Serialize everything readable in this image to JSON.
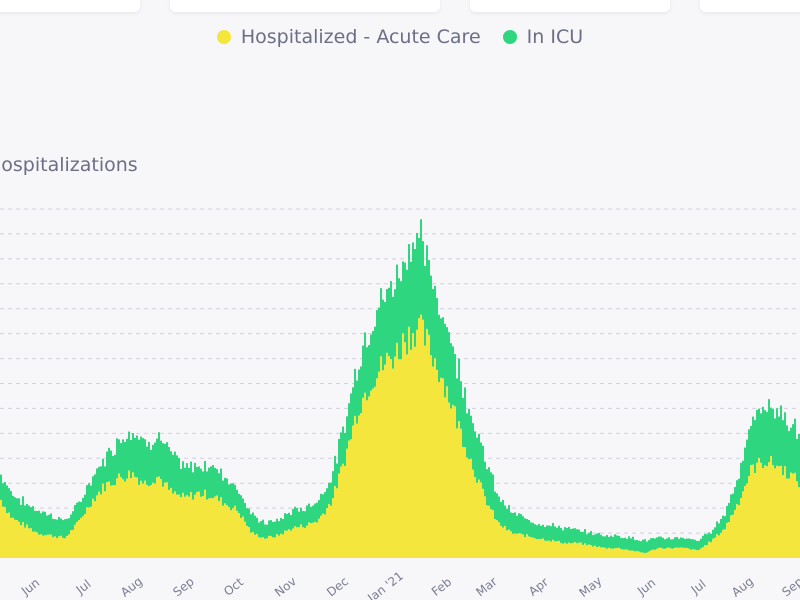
{
  "legend": {
    "acute_label": "Hospitalized - Acute Care",
    "icu_label": "In ICU"
  },
  "colors": {
    "acute": "#f4e63c",
    "icu": "#2ed67f",
    "gridline": "#cfd0e0",
    "axis_text": "#7a7d92"
  },
  "chart_data": {
    "type": "bar",
    "title": "Hospitalizations",
    "stacked": true,
    "grid": true,
    "gridline_style": "dashed",
    "legend_position": "top-center",
    "tick_labels": [
      "Jun",
      "Jul",
      "Aug",
      "Sep",
      "Oct",
      "Nov",
      "Dec",
      "Jan '21",
      "Feb",
      "Mar",
      "Apr",
      "May",
      "Jun",
      "Jul",
      "Aug",
      "Sep"
    ],
    "ylim": [
      0,
      14
    ],
    "series_names": [
      "Hospitalized - Acute Care",
      "In ICU"
    ],
    "acute_profile": [
      [
        0,
        2.4
      ],
      [
        12,
        1.6
      ],
      [
        25,
        1.3
      ],
      [
        38,
        1.0
      ],
      [
        52,
        0.9
      ],
      [
        65,
        0.8
      ],
      [
        78,
        1.4
      ],
      [
        92,
        2.3
      ],
      [
        105,
        2.9
      ],
      [
        118,
        3.2
      ],
      [
        132,
        3.4
      ],
      [
        145,
        3.0
      ],
      [
        158,
        3.3
      ],
      [
        172,
        2.6
      ],
      [
        185,
        2.4
      ],
      [
        198,
        2.6
      ],
      [
        212,
        2.5
      ],
      [
        225,
        2.2
      ],
      [
        238,
        1.9
      ],
      [
        252,
        1.0
      ],
      [
        265,
        0.8
      ],
      [
        278,
        0.9
      ],
      [
        292,
        1.2
      ],
      [
        305,
        1.3
      ],
      [
        318,
        1.5
      ],
      [
        332,
        2.3
      ],
      [
        345,
        4.0
      ],
      [
        358,
        6.0
      ],
      [
        372,
        7.2
      ],
      [
        385,
        7.8
      ],
      [
        398,
        8.3
      ],
      [
        405,
        8.8
      ],
      [
        418,
        9.3
      ],
      [
        425,
        8.8
      ],
      [
        432,
        8.2
      ],
      [
        445,
        7.0
      ],
      [
        458,
        5.4
      ],
      [
        472,
        3.8
      ],
      [
        485,
        2.4
      ],
      [
        498,
        1.4
      ],
      [
        512,
        1.0
      ],
      [
        525,
        0.9
      ],
      [
        538,
        0.8
      ],
      [
        552,
        0.7
      ],
      [
        565,
        0.6
      ],
      [
        578,
        0.6
      ],
      [
        592,
        0.5
      ],
      [
        605,
        0.4
      ],
      [
        618,
        0.4
      ],
      [
        632,
        0.3
      ],
      [
        645,
        0.2
      ],
      [
        658,
        0.4
      ],
      [
        672,
        0.4
      ],
      [
        685,
        0.4
      ],
      [
        698,
        0.3
      ],
      [
        712,
        0.7
      ],
      [
        725,
        1.2
      ],
      [
        738,
        2.2
      ],
      [
        752,
        3.6
      ],
      [
        765,
        3.9
      ],
      [
        778,
        3.7
      ],
      [
        792,
        3.3
      ],
      [
        800,
        3.0
      ]
    ],
    "icu_profile": [
      [
        0,
        1.0
      ],
      [
        12,
        1.0
      ],
      [
        25,
        0.9
      ],
      [
        38,
        0.9
      ],
      [
        52,
        0.8
      ],
      [
        65,
        0.7
      ],
      [
        78,
        0.7
      ],
      [
        92,
        0.9
      ],
      [
        105,
        1.1
      ],
      [
        118,
        1.5
      ],
      [
        132,
        1.8
      ],
      [
        145,
        1.6
      ],
      [
        158,
        1.6
      ],
      [
        172,
        1.5
      ],
      [
        185,
        1.2
      ],
      [
        198,
        1.1
      ],
      [
        212,
        1.2
      ],
      [
        225,
        1.1
      ],
      [
        238,
        0.9
      ],
      [
        252,
        0.7
      ],
      [
        265,
        0.6
      ],
      [
        278,
        0.6
      ],
      [
        292,
        0.7
      ],
      [
        305,
        0.7
      ],
      [
        318,
        0.8
      ],
      [
        332,
        1.0
      ],
      [
        345,
        1.4
      ],
      [
        358,
        1.9
      ],
      [
        372,
        2.4
      ],
      [
        385,
        2.7
      ],
      [
        398,
        3.0
      ],
      [
        405,
        3.4
      ],
      [
        418,
        3.7
      ],
      [
        425,
        3.3
      ],
      [
        432,
        2.9
      ],
      [
        445,
        2.6
      ],
      [
        458,
        2.3
      ],
      [
        472,
        1.9
      ],
      [
        485,
        1.6
      ],
      [
        498,
        1.1
      ],
      [
        512,
        0.8
      ],
      [
        525,
        0.7
      ],
      [
        538,
        0.6
      ],
      [
        552,
        0.6
      ],
      [
        565,
        0.6
      ],
      [
        578,
        0.5
      ],
      [
        592,
        0.5
      ],
      [
        605,
        0.5
      ],
      [
        618,
        0.5
      ],
      [
        632,
        0.5
      ],
      [
        645,
        0.5
      ],
      [
        658,
        0.4
      ],
      [
        672,
        0.4
      ],
      [
        685,
        0.4
      ],
      [
        698,
        0.4
      ],
      [
        712,
        0.4
      ],
      [
        725,
        0.6
      ],
      [
        738,
        1.1
      ],
      [
        752,
        1.8
      ],
      [
        765,
        2.3
      ],
      [
        778,
        2.2
      ],
      [
        792,
        2.0
      ],
      [
        800,
        1.9
      ]
    ]
  }
}
